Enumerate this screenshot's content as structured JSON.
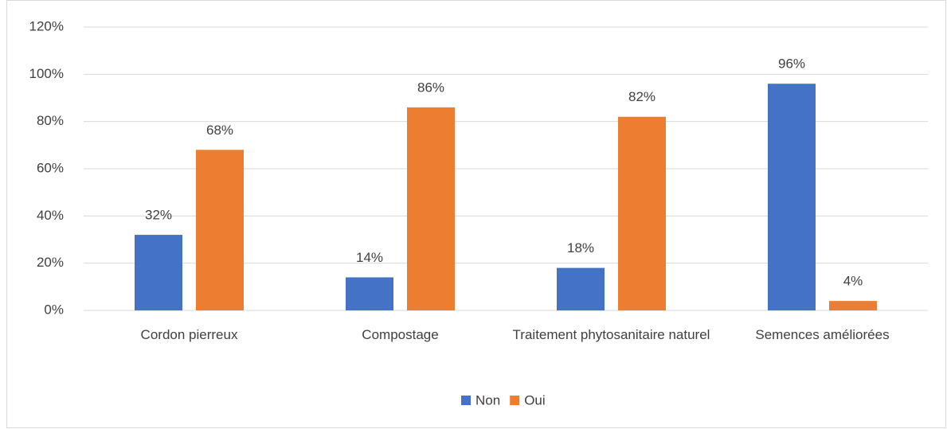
{
  "chart_data": {
    "type": "bar",
    "categories": [
      "Cordon pierreux",
      "Compostage",
      "Traitement phytosanitaire naturel",
      "Semences améliorées"
    ],
    "series": [
      {
        "name": "Non",
        "color": "#4472c4",
        "values": [
          32,
          14,
          18,
          96
        ],
        "value_labels": [
          "32%",
          "14%",
          "18%",
          "96%"
        ]
      },
      {
        "name": "Oui",
        "color": "#ed7d31",
        "values": [
          68,
          86,
          82,
          4
        ],
        "value_labels": [
          "68%",
          "86%",
          "82%",
          "4%"
        ]
      }
    ],
    "ylim": [
      0,
      120
    ],
    "yticks": [
      {
        "value": 0,
        "label": "0%"
      },
      {
        "value": 20,
        "label": "20%"
      },
      {
        "value": 40,
        "label": "40%"
      },
      {
        "value": 60,
        "label": "60%"
      },
      {
        "value": 80,
        "label": "80%"
      },
      {
        "value": 100,
        "label": "100%"
      },
      {
        "value": 120,
        "label": "120%"
      }
    ],
    "grid": true,
    "legend": "bottom"
  }
}
